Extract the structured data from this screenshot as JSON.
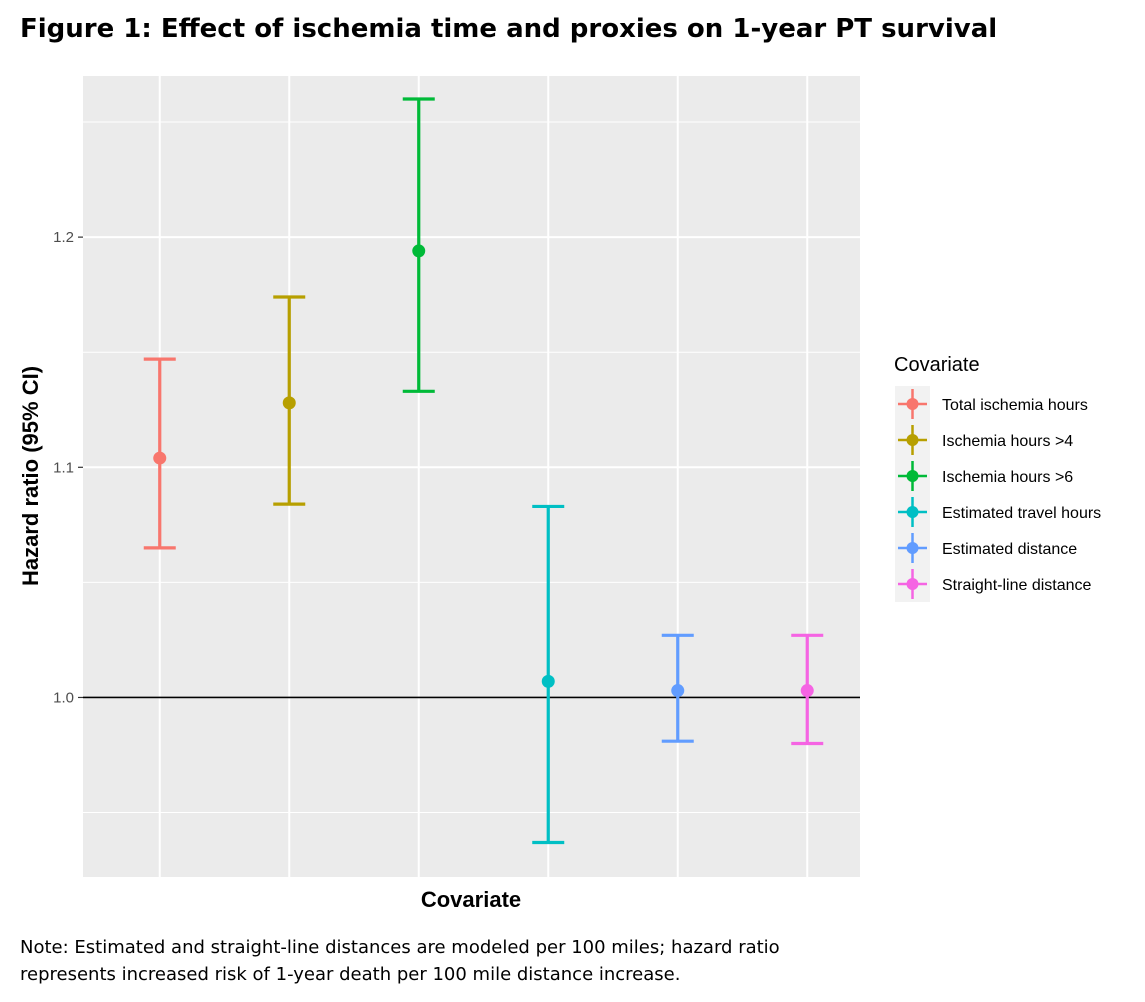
{
  "figure": {
    "title": "Figure 1: Effect of ischemia time and proxies on 1-year PT survival",
    "note_lines": [
      "Note: Estimated and straight-line distances are modeled per 100 miles; hazard ratio",
      "represents increased risk of 1-year death per 100 mile distance increase."
    ]
  },
  "chart_data": {
    "type": "errorbar",
    "xlabel": "Covariate",
    "ylabel": "Hazard ratio (95% CI)",
    "ylim": [
      0.922,
      1.27
    ],
    "yticks": [
      1.0,
      1.1,
      1.2
    ],
    "ytick_labels": [
      "1.0",
      "1.1",
      "1.2"
    ],
    "reference_line": 1.0,
    "grid": true,
    "legend_title": "Covariate",
    "legend_position": "right",
    "series": [
      {
        "name": "Total ischemia hours",
        "estimate": 1.104,
        "lower": 1.065,
        "upper": 1.147,
        "color": "#F8766D"
      },
      {
        "name": "Ischemia hours >4",
        "estimate": 1.128,
        "lower": 1.084,
        "upper": 1.174,
        "color": "#B79F00"
      },
      {
        "name": "Ischemia hours >6",
        "estimate": 1.194,
        "lower": 1.133,
        "upper": 1.26,
        "color": "#00BA38"
      },
      {
        "name": "Estimated travel hours",
        "estimate": 1.007,
        "lower": 0.937,
        "upper": 1.083,
        "color": "#00BFC4"
      },
      {
        "name": "Estimated distance",
        "estimate": 1.003,
        "lower": 0.981,
        "upper": 1.027,
        "color": "#619CFF"
      },
      {
        "name": "Straight-line distance",
        "estimate": 1.003,
        "lower": 0.98,
        "upper": 1.027,
        "color": "#F564E3"
      }
    ]
  }
}
